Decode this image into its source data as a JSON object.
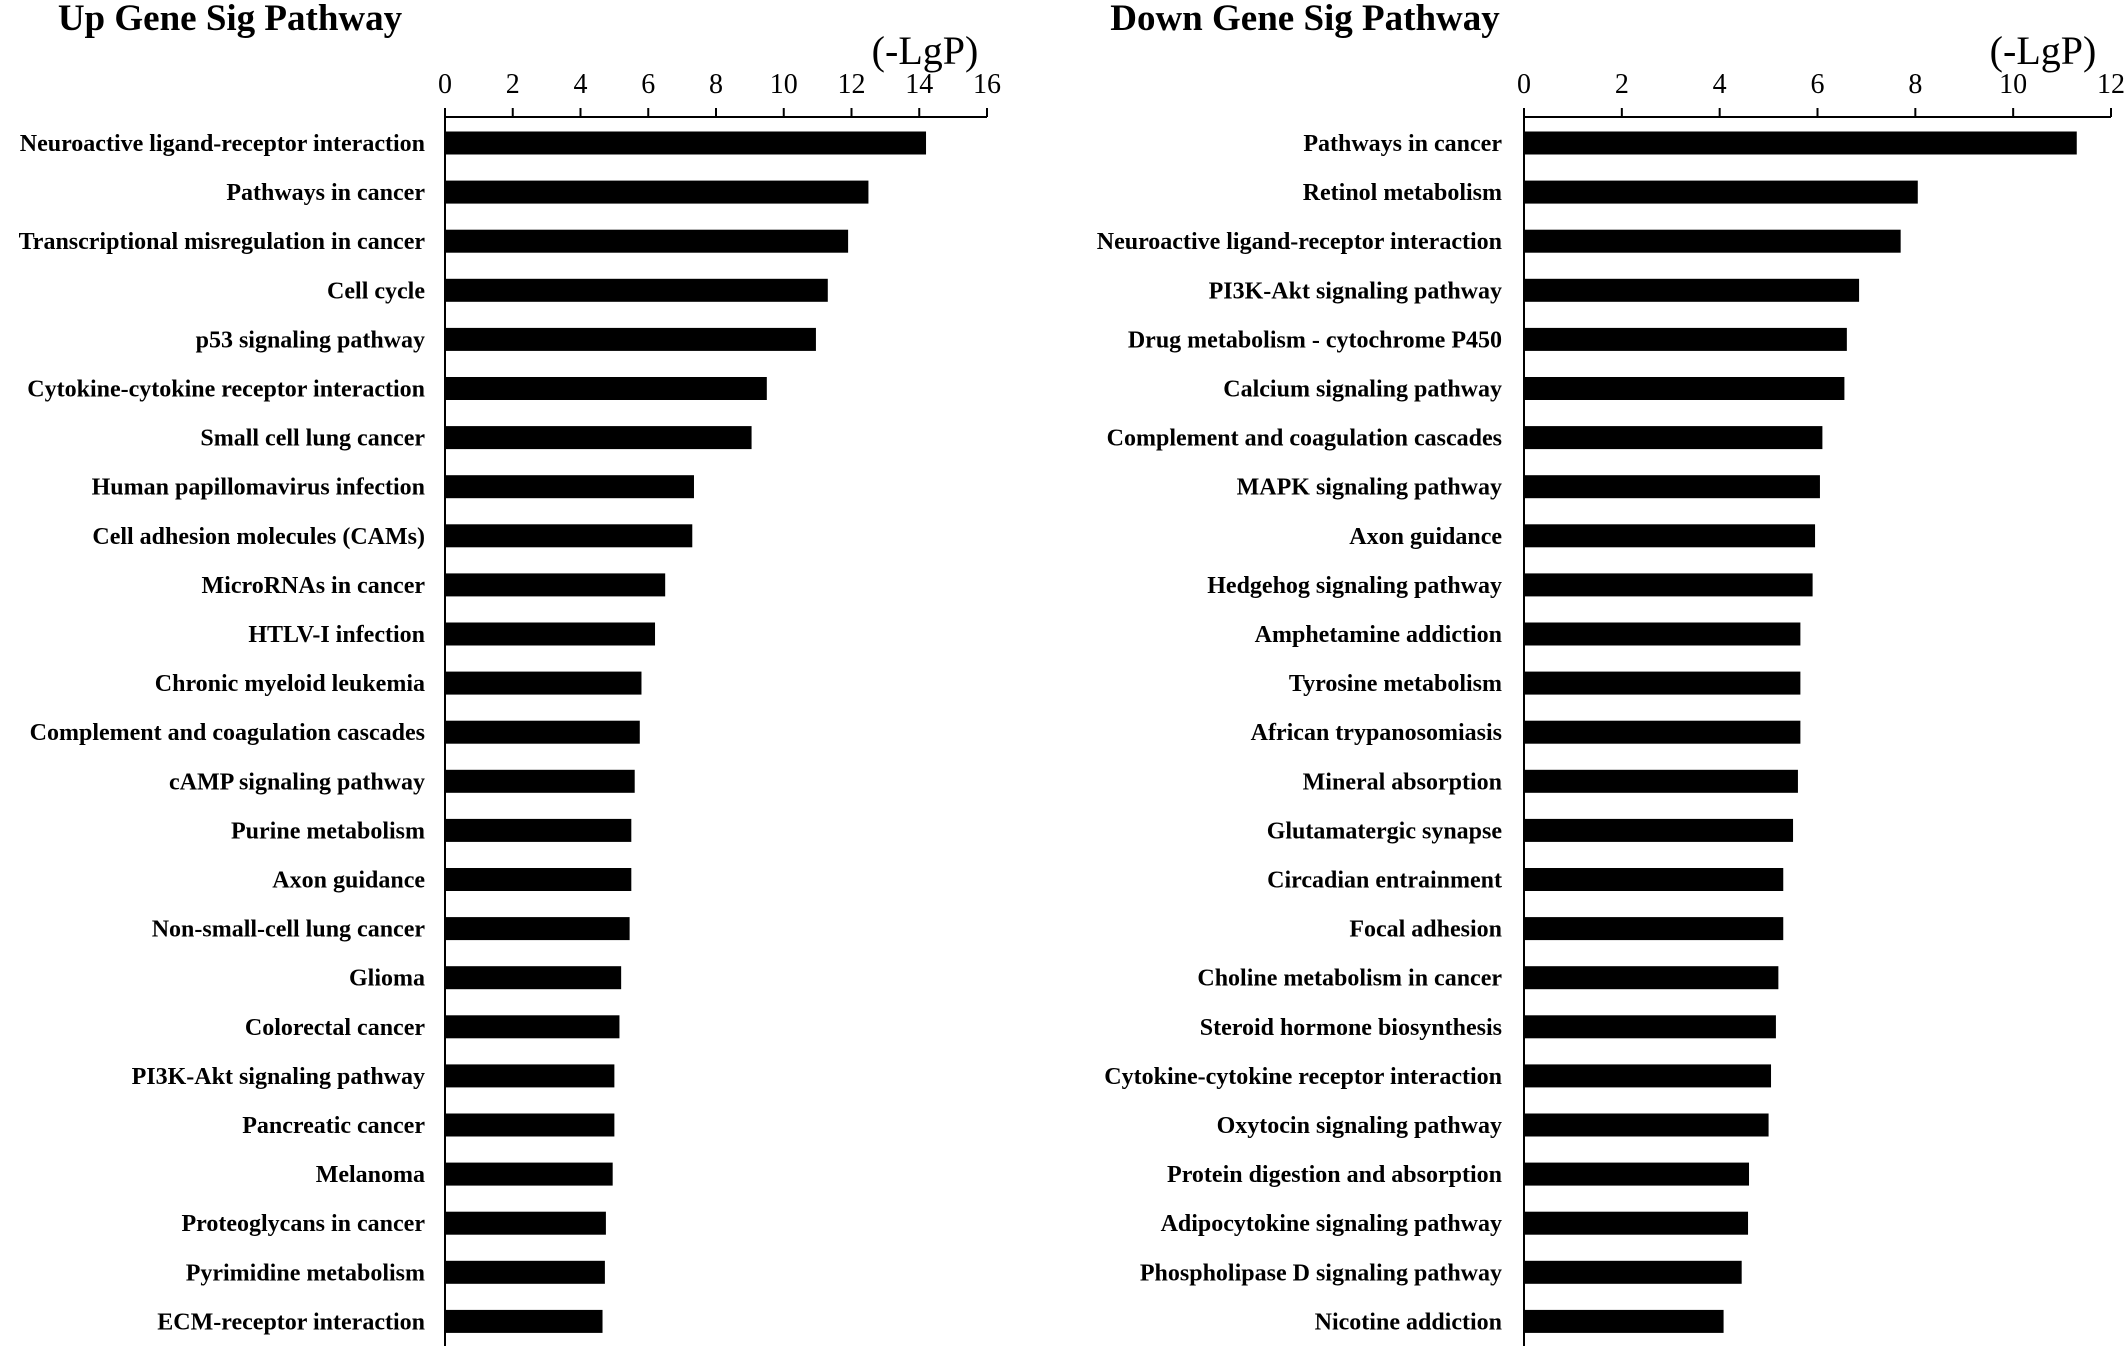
{
  "colors": {
    "bar": "#000000",
    "axis": "#000000",
    "background": "#ffffff"
  },
  "chart_data": [
    {
      "type": "bar",
      "orientation": "horizontal",
      "title": "Up Gene Sig Pathway",
      "xlabel": "(-LgP)",
      "ylabel": "",
      "xlim": [
        0,
        16
      ],
      "xticks": [
        "0",
        "2",
        "4",
        "6",
        "8",
        "10",
        "12",
        "14",
        "16"
      ],
      "xaxis_position": "top",
      "grid": false,
      "legend": "none",
      "categories": [
        "Neuroactive ligand-receptor interaction",
        "Pathways in cancer",
        "Transcriptional misregulation in cancer",
        "Cell cycle",
        "p53 signaling pathway",
        "Cytokine-cytokine receptor interaction",
        "Small cell lung cancer",
        "Human papillomavirus infection",
        "Cell adhesion molecules (CAMs)",
        "MicroRNAs in cancer",
        "HTLV-I infection",
        "Chronic myeloid leukemia",
        "Complement and coagulation cascades",
        "cAMP signaling pathway",
        "Purine metabolism",
        "Axon guidance",
        "Non-small-cell lung cancer",
        "Glioma",
        "Colorectal cancer",
        "PI3K-Akt signaling pathway",
        "Pancreatic cancer",
        "Melanoma",
        "Proteoglycans in cancer",
        "Pyrimidine metabolism",
        "ECM-receptor interaction"
      ],
      "values": [
        14.2,
        12.5,
        11.9,
        11.3,
        10.95,
        9.5,
        9.05,
        7.35,
        7.3,
        6.5,
        6.2,
        5.8,
        5.75,
        5.6,
        5.5,
        5.5,
        5.45,
        5.2,
        5.15,
        5.0,
        5.0,
        4.95,
        4.75,
        4.72,
        4.65
      ]
    },
    {
      "type": "bar",
      "orientation": "horizontal",
      "title": "Down Gene Sig Pathway",
      "xlabel": "(-LgP)",
      "ylabel": "",
      "xlim": [
        0,
        12
      ],
      "xticks": [
        "0",
        "2",
        "4",
        "6",
        "8",
        "10",
        "12"
      ],
      "xaxis_position": "top",
      "grid": false,
      "legend": "none",
      "categories": [
        "Pathways in cancer",
        "Retinol metabolism",
        "Neuroactive ligand-receptor interaction",
        "PI3K-Akt signaling pathway",
        "Drug metabolism - cytochrome P450",
        "Calcium signaling pathway",
        "Complement and coagulation cascades",
        "MAPK signaling pathway",
        "Axon guidance",
        "Hedgehog signaling pathway",
        "Amphetamine addiction",
        "Tyrosine metabolism",
        "African trypanosomiasis",
        "Mineral absorption",
        "Glutamatergic synapse",
        "Circadian entrainment",
        "Focal adhesion",
        "Choline metabolism in cancer",
        "Steroid hormone biosynthesis",
        "Cytokine-cytokine receptor interaction",
        "Oxytocin signaling pathway",
        "Protein digestion and absorption",
        "Adipocytokine signaling pathway",
        "Phospholipase D signaling pathway",
        "Nicotine addiction"
      ],
      "values": [
        11.3,
        8.05,
        7.7,
        6.85,
        6.6,
        6.55,
        6.1,
        6.05,
        5.95,
        5.9,
        5.65,
        5.65,
        5.65,
        5.6,
        5.5,
        5.3,
        5.3,
        5.2,
        5.15,
        5.05,
        5.0,
        4.6,
        4.58,
        4.45,
        4.08
      ]
    }
  ]
}
